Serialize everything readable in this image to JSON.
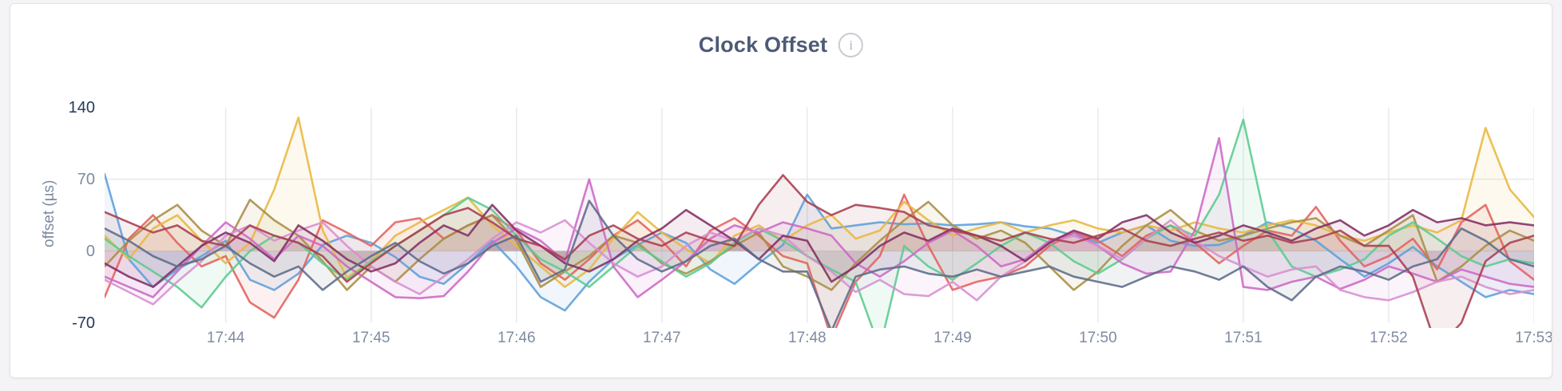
{
  "page": {
    "background": "#f4f4f6",
    "card_background": "#ffffff",
    "card_border": "#e3e4e7"
  },
  "header": {
    "title": "Clock Offset",
    "info_icon_glyph": "i"
  },
  "chart_data": {
    "type": "line",
    "title": "Clock Offset",
    "xlabel": "",
    "ylabel": "offset (µs)",
    "ylim": [
      -75,
      170
    ],
    "legend": "none",
    "grid": {
      "vertical": true,
      "horizontal_at": [
        70,
        0
      ],
      "color": "#e7e8ea",
      "grid_top_value": 140,
      "grid_bottom_value": -70
    },
    "y_ticks": [
      {
        "value": 140,
        "label": "140",
        "emphasis": true
      },
      {
        "value": 70,
        "label": "70",
        "emphasis": false
      },
      {
        "value": 0,
        "label": "0",
        "emphasis": false
      },
      {
        "value": -70,
        "label": "-70",
        "emphasis": true
      }
    ],
    "x_ticks": [
      {
        "index": 5,
        "label": "17:44"
      },
      {
        "index": 11,
        "label": "17:45"
      },
      {
        "index": 17,
        "label": "17:46"
      },
      {
        "index": 23,
        "label": "17:47"
      },
      {
        "index": 29,
        "label": "17:48"
      },
      {
        "index": 35,
        "label": "17:49"
      },
      {
        "index": 41,
        "label": "17:50"
      },
      {
        "index": 47,
        "label": "17:51"
      },
      {
        "index": 53,
        "label": "17:52"
      },
      {
        "index": 59,
        "label": "17:53"
      }
    ],
    "x": [
      "17:43:10",
      "17:43:20",
      "17:43:30",
      "17:43:40",
      "17:43:50",
      "17:44:00",
      "17:44:10",
      "17:44:20",
      "17:44:30",
      "17:44:40",
      "17:44:50",
      "17:45:00",
      "17:45:10",
      "17:45:20",
      "17:45:30",
      "17:45:40",
      "17:45:50",
      "17:46:00",
      "17:46:10",
      "17:46:20",
      "17:46:30",
      "17:46:40",
      "17:46:50",
      "17:47:00",
      "17:47:10",
      "17:47:20",
      "17:47:30",
      "17:47:40",
      "17:47:50",
      "17:48:00",
      "17:48:10",
      "17:48:20",
      "17:48:30",
      "17:48:40",
      "17:48:50",
      "17:49:00",
      "17:49:10",
      "17:49:20",
      "17:49:30",
      "17:49:40",
      "17:49:50",
      "17:50:00",
      "17:50:10",
      "17:50:20",
      "17:50:30",
      "17:50:40",
      "17:50:50",
      "17:51:00",
      "17:51:10",
      "17:51:20",
      "17:51:30",
      "17:51:40",
      "17:51:50",
      "17:52:00",
      "17:52:10",
      "17:52:20",
      "17:52:30",
      "17:52:40",
      "17:52:50",
      "17:53:00"
    ],
    "series": [
      {
        "name": "blue",
        "color": "#5d9fd8",
        "values": [
          75,
          -8,
          -35,
          -18,
          -5,
          10,
          -28,
          -38,
          -22,
          6,
          15,
          8,
          -6,
          -25,
          -32,
          -12,
          10,
          -15,
          -45,
          -58,
          -30,
          -8,
          6,
          18,
          8,
          -18,
          -32,
          -12,
          6,
          55,
          22,
          25,
          28,
          26,
          27,
          25,
          26,
          28,
          24,
          22,
          15,
          8,
          18,
          25,
          10,
          5,
          6,
          15,
          28,
          22,
          10,
          -8,
          -25,
          -12,
          4,
          -15,
          -30,
          -45,
          -38,
          -42
        ]
      },
      {
        "name": "salmon",
        "color": "#e2615d",
        "values": [
          -45,
          12,
          35,
          8,
          -15,
          -5,
          -50,
          -65,
          -28,
          30,
          18,
          5,
          28,
          32,
          12,
          25,
          35,
          20,
          -12,
          -28,
          -8,
          15,
          30,
          10,
          -15,
          20,
          32,
          15,
          -5,
          -12,
          -85,
          -30,
          -5,
          55,
          5,
          -38,
          -30,
          -25,
          -15,
          5,
          18,
          10,
          -5,
          15,
          25,
          8,
          -12,
          5,
          20,
          15,
          43,
          10,
          -15,
          -5,
          12,
          -18,
          28,
          45,
          -10,
          -28
        ]
      },
      {
        "name": "yellow",
        "color": "#e8b741",
        "values": [
          15,
          -8,
          22,
          35,
          10,
          -12,
          8,
          60,
          130,
          20,
          -26,
          -10,
          15,
          28,
          40,
          52,
          25,
          5,
          -15,
          -35,
          -18,
          12,
          38,
          18,
          2,
          -12,
          15,
          25,
          10,
          25,
          35,
          12,
          20,
          48,
          30,
          15,
          22,
          28,
          18,
          25,
          30,
          22,
          18,
          25,
          20,
          28,
          22,
          18,
          25,
          30,
          25,
          15,
          10,
          18,
          25,
          18,
          30,
          120,
          60,
          33
        ]
      },
      {
        "name": "olive",
        "color": "#a88d43",
        "values": [
          -15,
          10,
          30,
          45,
          20,
          5,
          50,
          30,
          15,
          -10,
          -38,
          -15,
          -30,
          -8,
          12,
          25,
          35,
          10,
          -35,
          -20,
          -5,
          15,
          8,
          -12,
          -22,
          -10,
          5,
          18,
          -15,
          -25,
          -38,
          -12,
          10,
          30,
          48,
          25,
          12,
          20,
          8,
          -15,
          -38,
          -20,
          5,
          25,
          40,
          20,
          10,
          15,
          22,
          28,
          32,
          15,
          5,
          20,
          35,
          -30,
          -15,
          5,
          20,
          10
        ]
      },
      {
        "name": "green",
        "color": "#5bcb8e",
        "values": [
          12,
          -5,
          -20,
          -35,
          -55,
          -25,
          0,
          15,
          8,
          -12,
          -28,
          -10,
          5,
          20,
          35,
          52,
          40,
          15,
          -8,
          -20,
          -35,
          -15,
          5,
          -10,
          -25,
          -12,
          8,
          22,
          10,
          -5,
          -18,
          -30,
          -95,
          5,
          -15,
          -28,
          -12,
          5,
          18,
          8,
          -10,
          -22,
          -8,
          12,
          25,
          15,
          55,
          128,
          20,
          -15,
          -25,
          -18,
          -8,
          15,
          28,
          12,
          -5,
          -15,
          -8,
          -12
        ]
      },
      {
        "name": "orchid",
        "color": "#cc68c5",
        "values": [
          -25,
          -35,
          -45,
          -20,
          5,
          28,
          12,
          -8,
          15,
          5,
          -15,
          -30,
          -45,
          -46,
          -44,
          -20,
          8,
          22,
          10,
          -10,
          70,
          -15,
          -45,
          -28,
          -10,
          12,
          25,
          18,
          28,
          22,
          15,
          -12,
          -25,
          -10,
          8,
          20,
          5,
          -15,
          -8,
          10,
          18,
          5,
          -12,
          -22,
          -20,
          20,
          110,
          -35,
          -38,
          -30,
          -25,
          -37,
          -28,
          -15,
          -22,
          -30,
          -18,
          -25,
          -32,
          -35
        ]
      },
      {
        "name": "violet",
        "color": "#d78ed2",
        "values": [
          -28,
          -40,
          -52,
          -30,
          -10,
          15,
          25,
          10,
          20,
          28,
          5,
          -15,
          -30,
          -42,
          -25,
          -8,
          12,
          28,
          18,
          30,
          8,
          -12,
          -25,
          -15,
          5,
          18,
          10,
          22,
          15,
          -5,
          -20,
          -40,
          -28,
          -42,
          -44,
          -30,
          -48,
          -25,
          -10,
          8,
          15,
          5,
          -8,
          12,
          30,
          10,
          -5,
          -15,
          -25,
          -18,
          -15,
          -38,
          -45,
          -48,
          -40,
          -30,
          -25,
          -35,
          -42,
          -38
        ]
      },
      {
        "name": "plum",
        "color": "#812f62",
        "values": [
          -12,
          -25,
          -35,
          -15,
          5,
          18,
          8,
          -10,
          25,
          10,
          -8,
          -20,
          -12,
          8,
          25,
          15,
          45,
          20,
          5,
          -12,
          -20,
          -8,
          10,
          22,
          40,
          25,
          10,
          -8,
          15,
          10,
          -30,
          -15,
          5,
          18,
          10,
          22,
          15,
          5,
          -10,
          8,
          20,
          12,
          28,
          35,
          18,
          8,
          15,
          25,
          18,
          10,
          22,
          30,
          15,
          25,
          40,
          28,
          32,
          25,
          28,
          25
        ]
      },
      {
        "name": "maroon",
        "color": "#a83d4f",
        "values": [
          38,
          28,
          18,
          25,
          10,
          5,
          25,
          15,
          8,
          -5,
          -30,
          -12,
          5,
          20,
          35,
          42,
          28,
          12,
          5,
          -8,
          15,
          25,
          12,
          5,
          18,
          10,
          5,
          45,
          74,
          48,
          35,
          45,
          42,
          38,
          25,
          20,
          15,
          10,
          18,
          12,
          8,
          15,
          22,
          10,
          5,
          12,
          18,
          10,
          15,
          8,
          12,
          20,
          5,
          5,
          -25,
          -95,
          -70,
          -10,
          8,
          15
        ]
      },
      {
        "name": "slate",
        "color": "#5c6b8a",
        "values": [
          22,
          10,
          -5,
          -15,
          -8,
          5,
          -12,
          -25,
          -15,
          -38,
          -20,
          -5,
          8,
          -10,
          -22,
          -12,
          5,
          15,
          -30,
          -18,
          49,
          15,
          -8,
          -20,
          -10,
          5,
          12,
          -8,
          -20,
          -20,
          -78,
          -25,
          -18,
          -15,
          -22,
          -25,
          -18,
          -25,
          -20,
          -15,
          -25,
          -30,
          -35,
          -25,
          -15,
          -20,
          -28,
          -15,
          -35,
          -48,
          -25,
          -15,
          -20,
          -28,
          -15,
          -8,
          22,
          10,
          -8,
          -15
        ]
      }
    ],
    "style": {
      "line_width": 2.6,
      "line_opacity": 0.88,
      "fill_opacity": 0.09,
      "fill_baseline_value": 0
    }
  }
}
